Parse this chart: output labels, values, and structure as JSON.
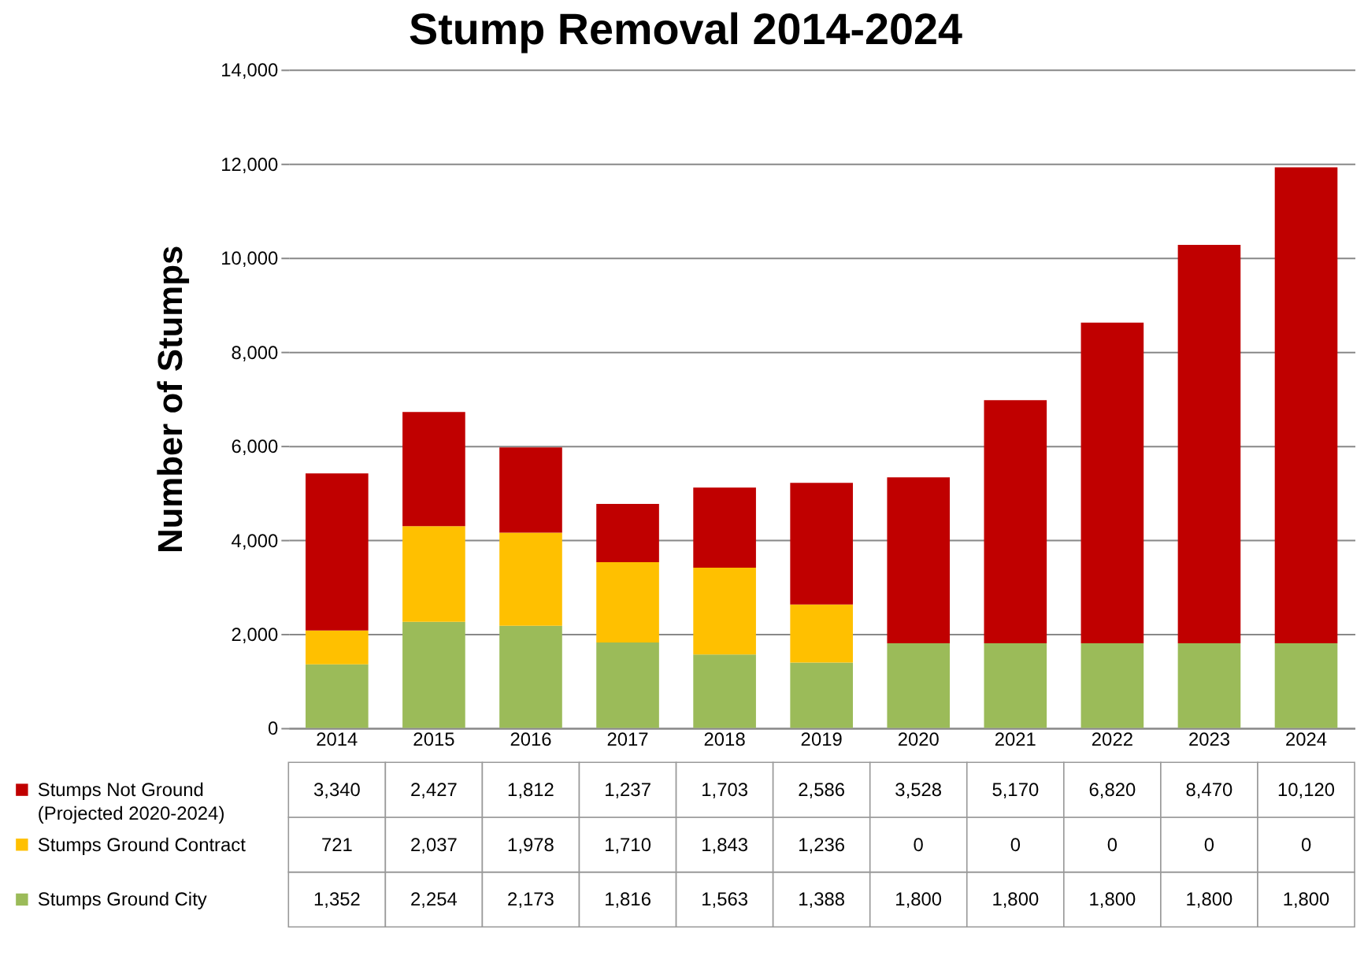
{
  "chart_data": {
    "type": "bar",
    "title": "Stump Removal 2014-2024",
    "ylabel": "Number of Stumps",
    "categories": [
      "2014",
      "2015",
      "2016",
      "2017",
      "2018",
      "2019",
      "2020",
      "2021",
      "2022",
      "2023",
      "2024"
    ],
    "stacked": true,
    "series": [
      {
        "name": "Stumps Ground City",
        "color": "#9bbb59",
        "values": [
          1352,
          2254,
          2173,
          1816,
          1563,
          1388,
          1800,
          1800,
          1800,
          1800,
          1800
        ],
        "value_labels": [
          "1,352",
          "2,254",
          "2,173",
          "1,816",
          "1,563",
          "1,388",
          "1,800",
          "1,800",
          "1,800",
          "1,800",
          "1,800"
        ]
      },
      {
        "name": "Stumps Ground Contract",
        "color": "#ffc000",
        "values": [
          721,
          2037,
          1978,
          1710,
          1843,
          1236,
          0,
          0,
          0,
          0,
          0
        ],
        "value_labels": [
          "721",
          "2,037",
          "1,978",
          "1,710",
          "1,843",
          "1,236",
          "0",
          "0",
          "0",
          "0",
          "0"
        ]
      },
      {
        "name": "Stumps Not Ground (Projected 2020-2024)",
        "color": "#c00000",
        "values": [
          3340,
          2427,
          1812,
          1237,
          1703,
          2586,
          3528,
          5170,
          6820,
          8470,
          10120
        ],
        "value_labels": [
          "3,340",
          "2,427",
          "1,812",
          "1,237",
          "1,703",
          "2,586",
          "3,528",
          "5,170",
          "6,820",
          "8,470",
          "10,120"
        ]
      }
    ],
    "ylim": [
      0,
      14000
    ],
    "yticks": [
      0,
      {
        "value": 2000,
        "label": "2,000"
      },
      {
        "value": 4000,
        "label": "4,000"
      },
      {
        "value": 6000,
        "label": "6,000"
      },
      {
        "value": 8000,
        "label": "8,000"
      },
      {
        "value": 10000,
        "label": "10,000"
      },
      {
        "value": 12000,
        "label": "12,000"
      },
      {
        "value": 14000,
        "label": "14,000"
      }
    ],
    "grid": "y",
    "legend": "bottom"
  }
}
